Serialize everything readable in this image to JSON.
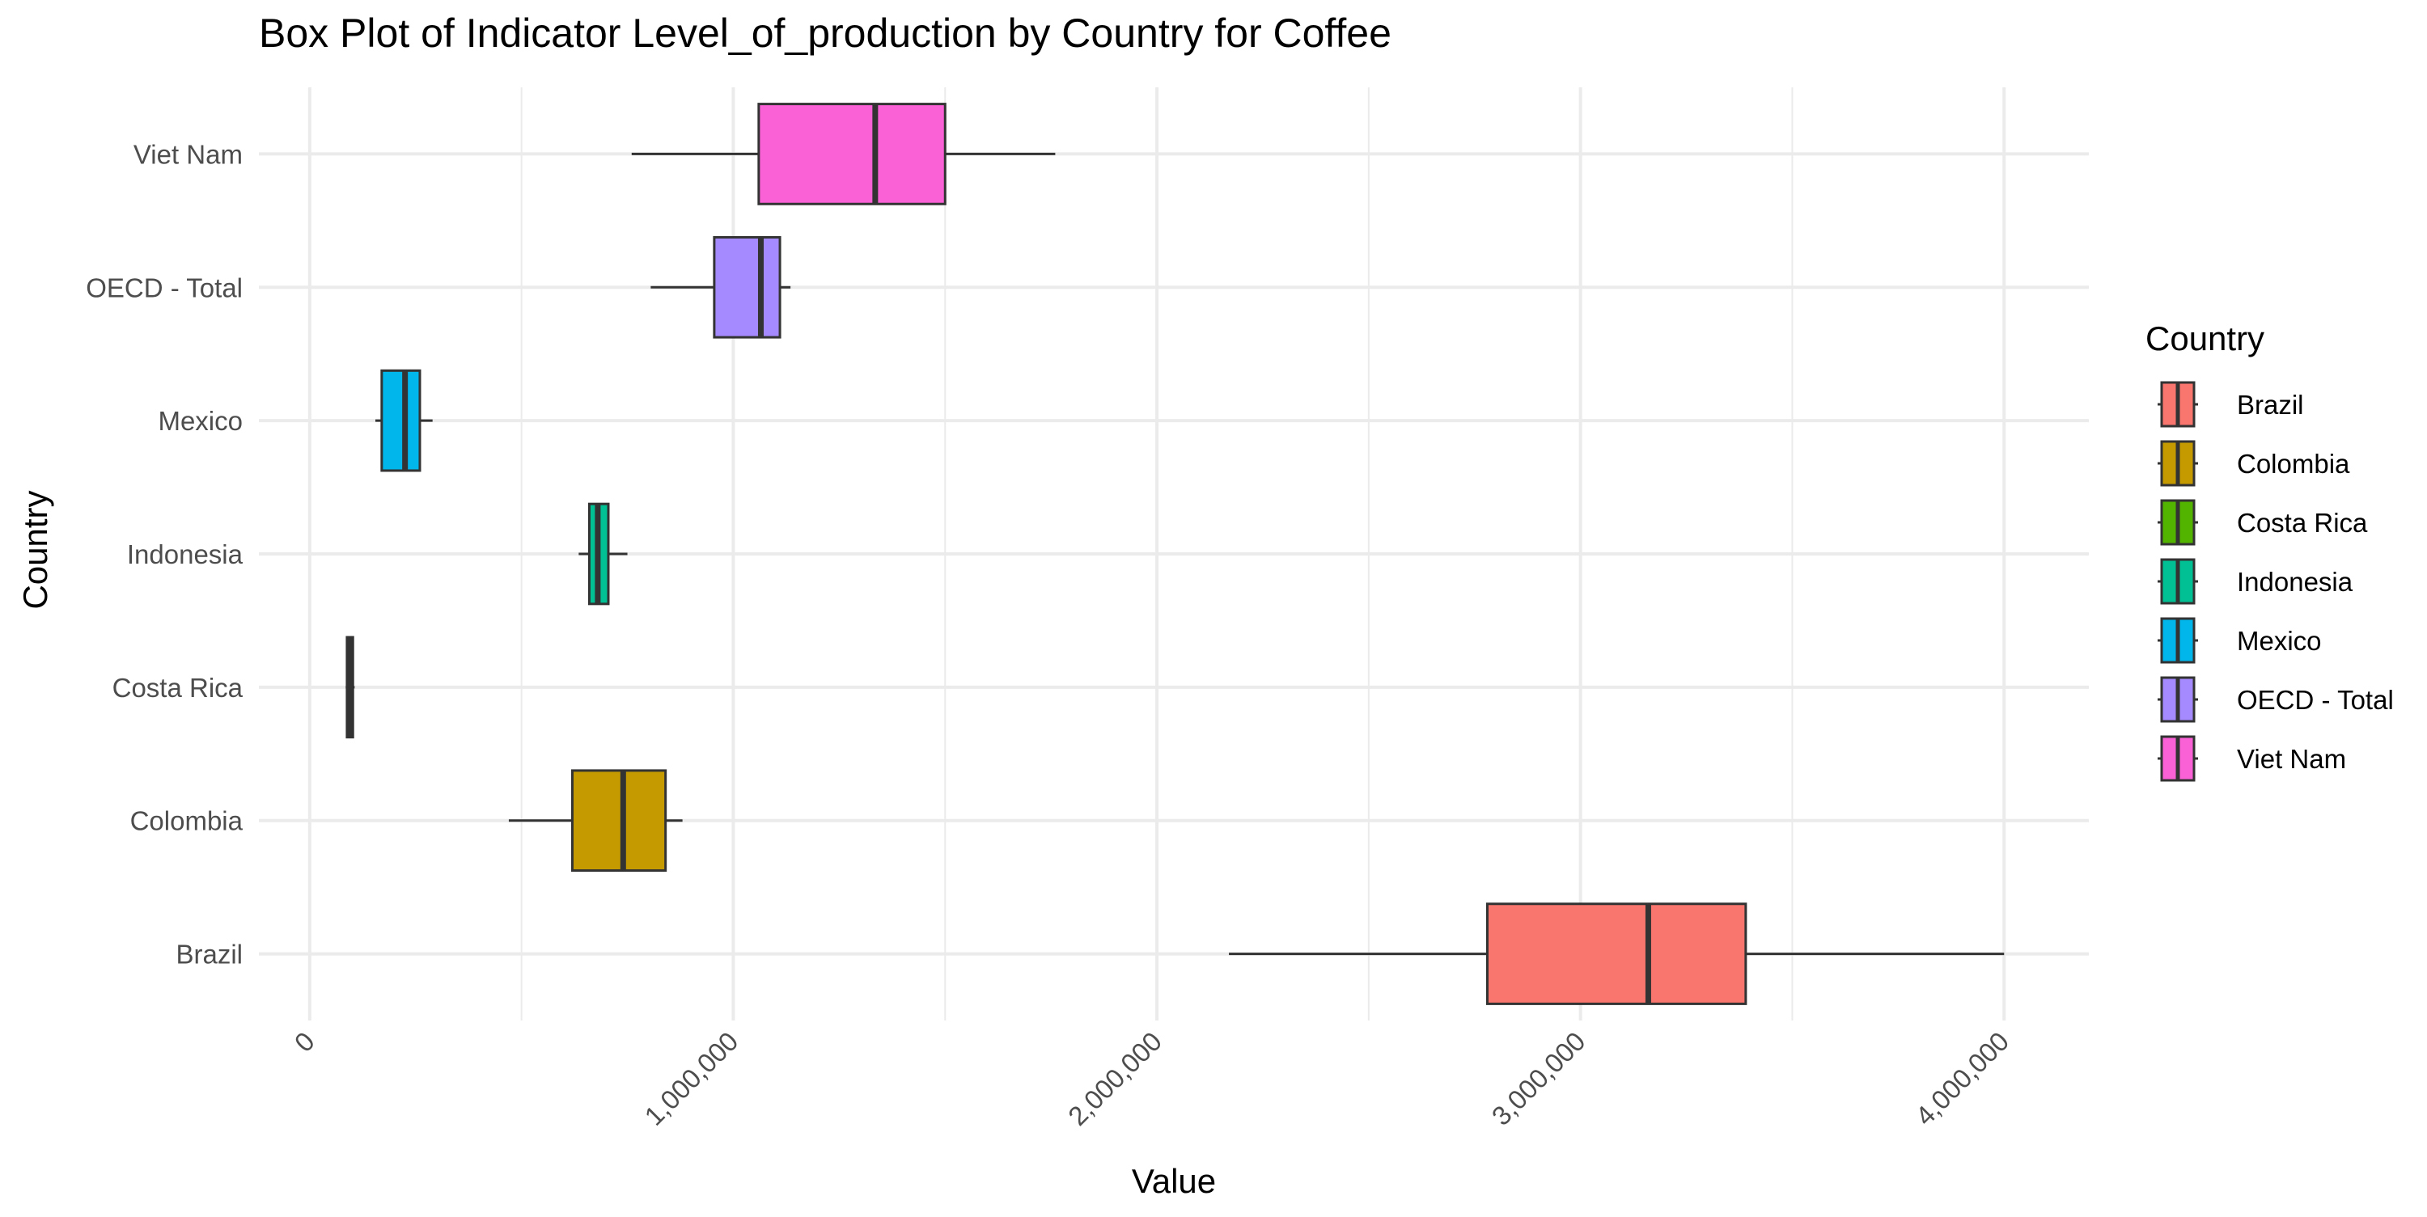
{
  "chart_data": {
    "type": "boxplot",
    "orientation": "horizontal",
    "title": "Box Plot of Indicator Level_of_production by Country for Coffee",
    "xlabel": "Value",
    "ylabel": "Country",
    "xlim": [
      -120000,
      4200000
    ],
    "x_ticks": [
      0,
      1000000,
      2000000,
      3000000,
      4000000
    ],
    "x_tick_labels": [
      "0",
      "1,000,000",
      "2,000,000",
      "3,000,000",
      "4,000,000"
    ],
    "grid": true,
    "legend": {
      "title": "Country",
      "position": "right"
    },
    "series": [
      {
        "name": "Brazil",
        "color": "#F8766D",
        "min": 2170000,
        "q1": 2780000,
        "median": 3160000,
        "q3": 3390000,
        "max": 4000000
      },
      {
        "name": "Colombia",
        "color": "#C49A00",
        "min": 470000,
        "q1": 620000,
        "median": 740000,
        "q3": 840000,
        "max": 880000
      },
      {
        "name": "Costa Rica",
        "color": "#53B400",
        "min": 85000,
        "q1": 88000,
        "median": 93000,
        "q3": 102000,
        "max": 106000
      },
      {
        "name": "Indonesia",
        "color": "#00C094",
        "min": 635000,
        "q1": 660000,
        "median": 680000,
        "q3": 705000,
        "max": 750000
      },
      {
        "name": "Mexico",
        "color": "#00B6EB",
        "min": 155000,
        "q1": 170000,
        "median": 225000,
        "q3": 260000,
        "max": 290000
      },
      {
        "name": "OECD - Total",
        "color": "#A58AFF",
        "min": 805000,
        "q1": 955000,
        "median": 1065000,
        "q3": 1110000,
        "max": 1135000
      },
      {
        "name": "Viet Nam",
        "color": "#FB61D7",
        "min": 760000,
        "q1": 1060000,
        "median": 1335000,
        "q3": 1500000,
        "max": 1760000
      }
    ]
  }
}
